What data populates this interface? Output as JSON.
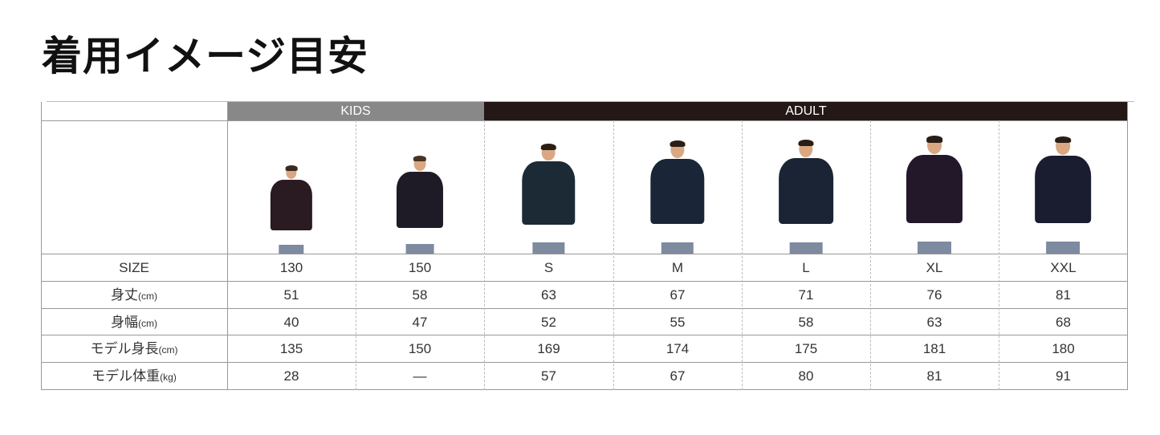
{
  "title": "着用イメージ目安",
  "groups": {
    "kids": "KIDS",
    "adult": "ADULT"
  },
  "colors": {
    "kids_header": "#888888",
    "adult_header": "#231815",
    "shirt_navy": "#1c2433"
  },
  "rows": [
    {
      "label": "SIZE",
      "unit": "",
      "values": [
        "130",
        "150",
        "S",
        "M",
        "L",
        "XL",
        "XXL"
      ]
    },
    {
      "label": "身丈",
      "unit": "(cm)",
      "values": [
        "51",
        "58",
        "63",
        "67",
        "71",
        "76",
        "81"
      ]
    },
    {
      "label": "身幅",
      "unit": "(cm)",
      "values": [
        "40",
        "47",
        "52",
        "55",
        "58",
        "63",
        "68"
      ]
    },
    {
      "label": "モデル身長",
      "unit": "(cm)",
      "values": [
        "135",
        "150",
        "169",
        "174",
        "175",
        "181",
        "180"
      ]
    },
    {
      "label": "モデル体重",
      "unit": "(kg)",
      "values": [
        "28",
        "—",
        "57",
        "67",
        "80",
        "81",
        "91"
      ]
    }
  ],
  "models": [
    {
      "shirt": "#2a1a22",
      "hair": "#3a2a1e"
    },
    {
      "shirt": "#1e1a26",
      "hair": "#4a3422"
    },
    {
      "shirt": "#1c2a36",
      "hair": "#2a1d14"
    },
    {
      "shirt": "#1a2638",
      "hair": "#2a1d14"
    },
    {
      "shirt": "#1a2434",
      "hair": "#2a1d14"
    },
    {
      "shirt": "#22182a",
      "hair": "#2a1d14"
    },
    {
      "shirt": "#1a1c30",
      "hair": "#2a1d14"
    }
  ]
}
